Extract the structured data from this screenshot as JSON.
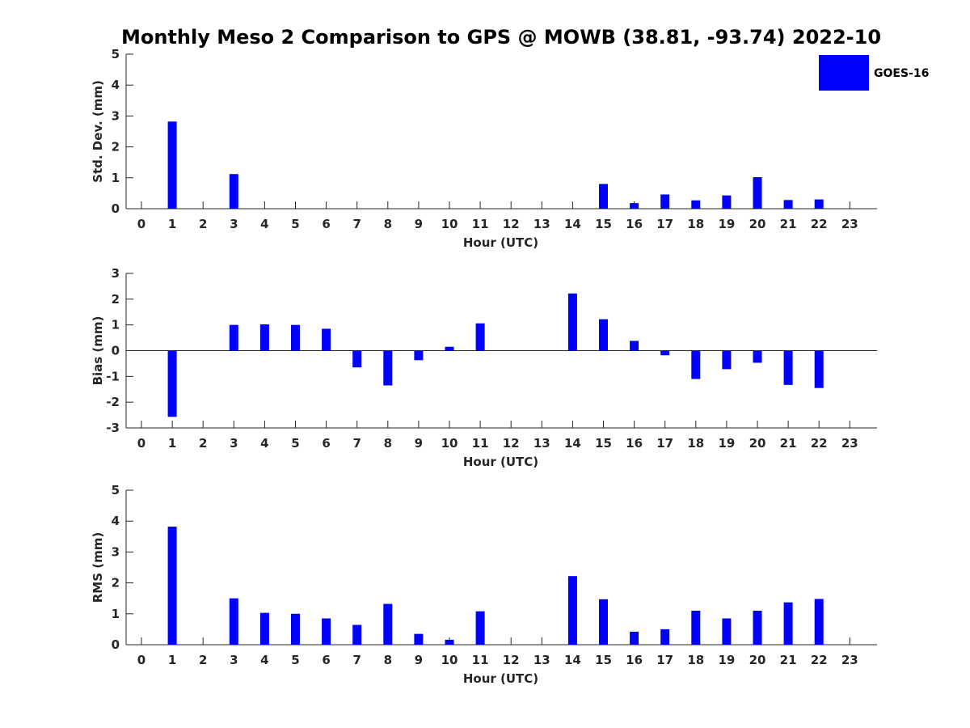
{
  "figure": {
    "title": "Monthly Meso 2 Comparison to GPS @ MOWB (38.81, -93.74) 2022-10"
  },
  "legend": {
    "label": "GOES-16",
    "color": "#0000ff",
    "placement": "top-right"
  },
  "chart_data": [
    {
      "type": "bar",
      "xlabel": "Hour (UTC)",
      "ylabel": "Std. Dev. (mm)",
      "ylim": [
        0,
        5
      ],
      "yticks": [
        0,
        1,
        2,
        3,
        4,
        5
      ],
      "categories": [
        "0",
        "1",
        "2",
        "3",
        "4",
        "5",
        "6",
        "7",
        "8",
        "9",
        "10",
        "11",
        "12",
        "13",
        "14",
        "15",
        "16",
        "17",
        "18",
        "19",
        "20",
        "21",
        "22",
        "23"
      ],
      "series": [
        {
          "name": "GOES-16",
          "color": "#0000ff",
          "values": [
            null,
            2.82,
            null,
            1.12,
            null,
            null,
            null,
            null,
            null,
            null,
            null,
            null,
            null,
            null,
            null,
            0.8,
            0.18,
            0.46,
            0.27,
            0.43,
            1.02,
            0.28,
            0.3,
            null
          ]
        }
      ],
      "zero_line": false
    },
    {
      "type": "bar",
      "xlabel": "Hour (UTC)",
      "ylabel": "Bias (mm)",
      "ylim": [
        -3,
        3
      ],
      "yticks": [
        -3,
        -2,
        -1,
        0,
        1,
        2,
        3
      ],
      "categories": [
        "0",
        "1",
        "2",
        "3",
        "4",
        "5",
        "6",
        "7",
        "8",
        "9",
        "10",
        "11",
        "12",
        "13",
        "14",
        "15",
        "16",
        "17",
        "18",
        "19",
        "20",
        "21",
        "22",
        "23"
      ],
      "series": [
        {
          "name": "GOES-16",
          "color": "#0000ff",
          "values": [
            null,
            -2.57,
            null,
            1.0,
            1.02,
            1.0,
            0.85,
            -0.65,
            -1.35,
            -0.37,
            0.15,
            1.06,
            null,
            null,
            2.22,
            1.22,
            0.38,
            -0.18,
            -1.1,
            -0.72,
            -0.47,
            -1.33,
            -1.45,
            null
          ]
        }
      ],
      "zero_line": true
    },
    {
      "type": "bar",
      "xlabel": "Hour (UTC)",
      "ylabel": "RMS (mm)",
      "ylim": [
        0,
        5
      ],
      "yticks": [
        0,
        1,
        2,
        3,
        4,
        5
      ],
      "categories": [
        "0",
        "1",
        "2",
        "3",
        "4",
        "5",
        "6",
        "7",
        "8",
        "9",
        "10",
        "11",
        "12",
        "13",
        "14",
        "15",
        "16",
        "17",
        "18",
        "19",
        "20",
        "21",
        "22",
        "23"
      ],
      "series": [
        {
          "name": "GOES-16",
          "color": "#0000ff",
          "values": [
            null,
            3.82,
            null,
            1.5,
            1.03,
            1.0,
            0.85,
            0.64,
            1.32,
            0.35,
            0.16,
            1.08,
            null,
            null,
            2.22,
            1.47,
            0.42,
            0.5,
            1.1,
            0.85,
            1.1,
            1.37,
            1.48,
            null
          ]
        }
      ],
      "zero_line": false
    }
  ]
}
